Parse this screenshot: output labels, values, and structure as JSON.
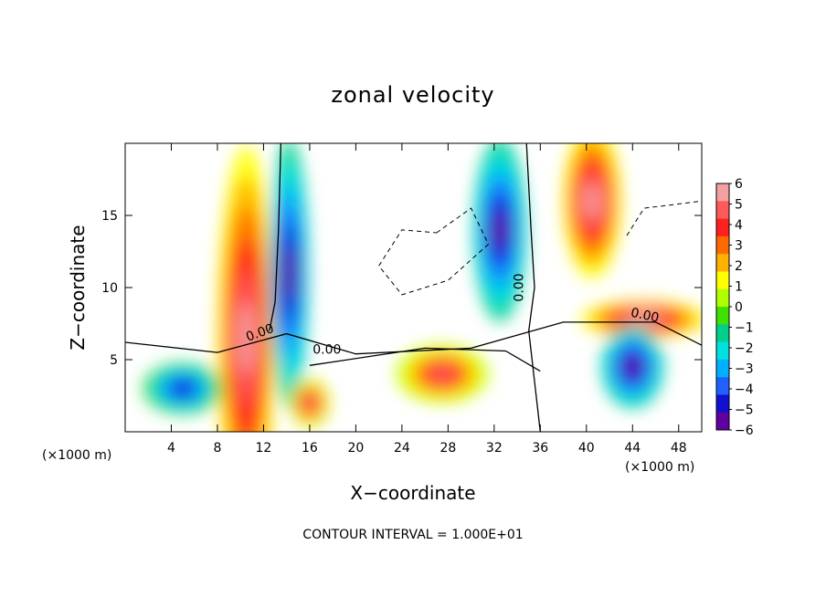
{
  "chart_data": {
    "type": "heatmap",
    "title": "zonal velocity",
    "xlabel": "X−coordinate",
    "ylabel": "Z−coordinate",
    "x_unit_label": "(×1000 m)",
    "y_unit_label": "(×1000 m)",
    "footer": "CONTOUR INTERVAL = 1.000E+01",
    "xlim": [
      0,
      50
    ],
    "ylim": [
      0,
      20
    ],
    "x_ticks": [
      4,
      8,
      12,
      16,
      20,
      24,
      28,
      32,
      36,
      40,
      44,
      48
    ],
    "y_ticks": [
      5,
      10,
      15
    ],
    "colorbar": {
      "range": [
        -6,
        6
      ],
      "ticks": [
        "6",
        "5",
        "4",
        "3",
        "2",
        "1",
        "0",
        "−1",
        "−2",
        "−3",
        "−4",
        "−5",
        "−6"
      ],
      "colors": [
        "#f4a0a0",
        "#ff5a5a",
        "#ff2020",
        "#ff6a00",
        "#ffb000",
        "#ffff00",
        "#b0ff00",
        "#40e000",
        "#00d08a",
        "#00e0e0",
        "#00b0ff",
        "#2060ff",
        "#1010d0",
        "#6000a0"
      ]
    },
    "contour_labels": [
      "0.00",
      "0.00",
      "0.00",
      "0.00"
    ],
    "features": [
      {
        "kind": "jet",
        "x": 10.5,
        "z": 6.5,
        "value": 6,
        "sx": 2.0,
        "sz": 13
      },
      {
        "kind": "jet",
        "x": 14.2,
        "z": 11,
        "value": -6,
        "sx": 1.2,
        "sz": 9
      },
      {
        "kind": "jet",
        "x": 32.5,
        "z": 14,
        "value": -6,
        "sx": 1.8,
        "sz": 6
      },
      {
        "kind": "jet",
        "x": 40.5,
        "z": 16,
        "value": 6,
        "sx": 2.0,
        "sz": 5
      },
      {
        "kind": "jet",
        "x": 45.0,
        "z": 7.8,
        "value": 6,
        "sx": 5.0,
        "sz": 0.9
      },
      {
        "kind": "jet",
        "x": 27.5,
        "z": 4.0,
        "value": 5,
        "sx": 3.5,
        "sz": 1.6
      },
      {
        "kind": "jet",
        "x": 16.0,
        "z": 2.0,
        "value": 5,
        "sx": 1.2,
        "sz": 1.3
      },
      {
        "kind": "jet",
        "x": 44.0,
        "z": 4.5,
        "value": -6,
        "sx": 2.2,
        "sz": 2.5
      },
      {
        "kind": "jet",
        "x": 5.0,
        "z": 3.0,
        "value": -5,
        "sx": 3.0,
        "sz": 1.4
      }
    ]
  }
}
